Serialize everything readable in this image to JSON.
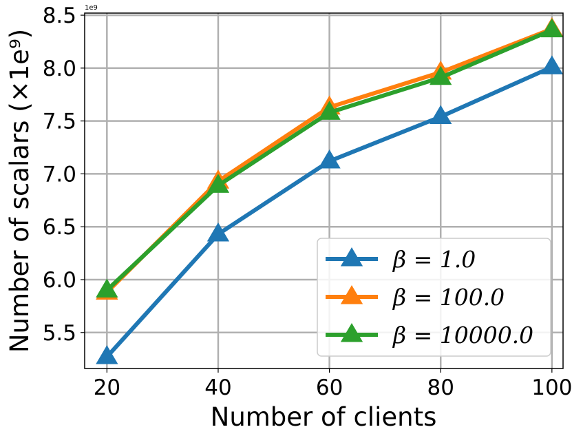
{
  "chart_data": {
    "type": "line",
    "xlabel": "Number of clients",
    "ylabel": "Number of scalars (×1e⁹)",
    "offset_text": "1e9",
    "x": [
      20,
      40,
      60,
      80,
      100
    ],
    "xticks": [
      "20",
      "40",
      "60",
      "80",
      "100"
    ],
    "yticks": [
      "5.5",
      "6.0",
      "6.5",
      "7.0",
      "7.5",
      "8.0",
      "8.5"
    ],
    "xlim": [
      16,
      102
    ],
    "ylim": [
      5.16,
      8.52
    ],
    "grid": true,
    "legend_position": "lower-right",
    "series": [
      {
        "name": "β = 1.0",
        "color": "#1f77b4",
        "marker": "triangle-up",
        "values": [
          5.27,
          6.43,
          7.12,
          7.54,
          8.01
        ]
      },
      {
        "name": "β = 100.0",
        "color": "#ff7f0e",
        "marker": "triangle-up",
        "values": [
          5.88,
          6.93,
          7.63,
          7.96,
          8.37
        ]
      },
      {
        "name": "β = 10000.0",
        "color": "#2ca02c",
        "marker": "triangle-up",
        "values": [
          5.9,
          6.89,
          7.58,
          7.91,
          8.36
        ]
      }
    ]
  }
}
